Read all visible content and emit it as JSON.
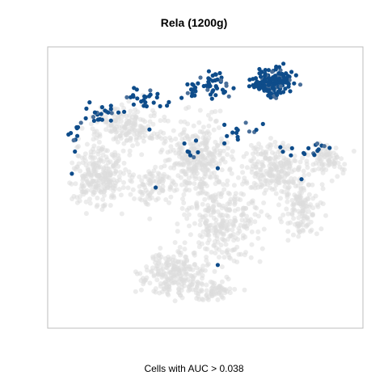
{
  "chart_data": {
    "type": "scatter",
    "title": "Rela (1200g)",
    "caption": "Cells with AUC > 0.038",
    "xlabel": "",
    "ylabel": "",
    "xlim": [
      0,
      100
    ],
    "ylim": [
      0,
      100
    ],
    "grid": false,
    "legend": "none",
    "colors": {
      "background_cells": "#dcdcdc",
      "active_cells": "#0e4c8a",
      "active_cells_light": "#4a6f99",
      "frame": "#bdbdbd"
    },
    "series": [
      {
        "role": "background",
        "clusters": [
          {
            "cx": 16,
            "cy": 55,
            "sx": 8,
            "sy": 10,
            "n": 260
          },
          {
            "cx": 25,
            "cy": 72,
            "sx": 9,
            "sy": 6,
            "n": 170
          },
          {
            "cx": 47,
            "cy": 60,
            "sx": 9,
            "sy": 13,
            "n": 320
          },
          {
            "cx": 56,
            "cy": 38,
            "sx": 10,
            "sy": 12,
            "n": 260
          },
          {
            "cx": 40,
            "cy": 20,
            "sx": 9,
            "sy": 7,
            "n": 230
          },
          {
            "cx": 53,
            "cy": 13,
            "sx": 5,
            "sy": 4,
            "n": 70
          },
          {
            "cx": 72,
            "cy": 57,
            "sx": 8,
            "sy": 8,
            "n": 220
          },
          {
            "cx": 81,
            "cy": 42,
            "sx": 5,
            "sy": 9,
            "n": 130
          },
          {
            "cx": 89,
            "cy": 60,
            "sx": 5,
            "sy": 5,
            "n": 80
          },
          {
            "cx": 33,
            "cy": 50,
            "sx": 5,
            "sy": 6,
            "n": 80
          }
        ]
      },
      {
        "role": "active",
        "clusters": [
          {
            "cx": 72,
            "cy": 88,
            "sx": 6,
            "sy": 4,
            "n": 170
          },
          {
            "cx": 53,
            "cy": 87,
            "sx": 4,
            "sy": 4,
            "n": 36
          },
          {
            "cx": 45,
            "cy": 85,
            "sx": 3,
            "sy": 3,
            "n": 14
          },
          {
            "cx": 31,
            "cy": 82,
            "sx": 5,
            "sy": 3,
            "n": 24
          },
          {
            "cx": 17,
            "cy": 76,
            "sx": 6,
            "sy": 3,
            "n": 24
          },
          {
            "cx": 8,
            "cy": 70,
            "sx": 2,
            "sy": 3,
            "n": 8
          },
          {
            "cx": 62,
            "cy": 70,
            "sx": 6,
            "sy": 3,
            "n": 14
          },
          {
            "cx": 88,
            "cy": 64,
            "sx": 2,
            "sy": 2,
            "n": 8
          },
          {
            "cx": 80,
            "cy": 63,
            "sx": 6,
            "sy": 2,
            "n": 8
          },
          {
            "cx": 46,
            "cy": 63,
            "sx": 2,
            "sy": 3,
            "n": 6
          }
        ],
        "points": [
          {
            "x": 7,
            "y": 55
          },
          {
            "x": 34,
            "y": 50
          },
          {
            "x": 54,
            "y": 57
          },
          {
            "x": 81,
            "y": 53
          },
          {
            "x": 54,
            "y": 22
          },
          {
            "x": 32,
            "y": 71
          },
          {
            "x": 47,
            "y": 67
          },
          {
            "x": 8,
            "y": 63
          }
        ]
      }
    ]
  }
}
